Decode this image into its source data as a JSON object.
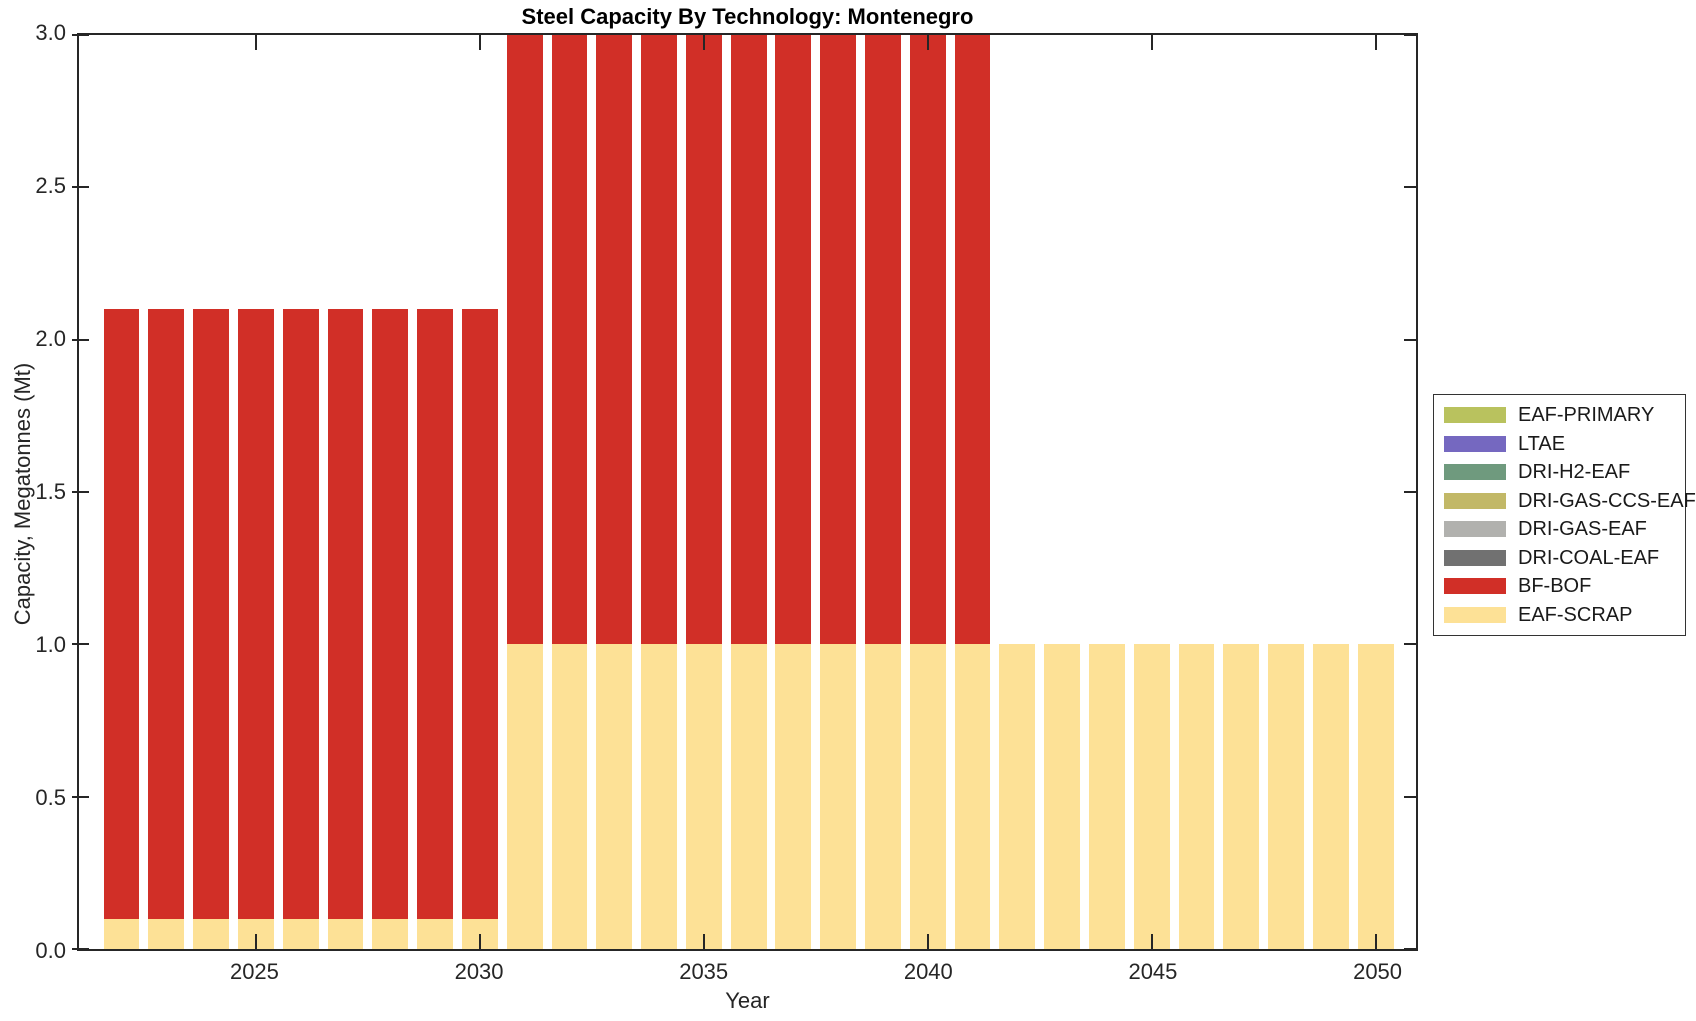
{
  "figure": {
    "title": "Steel Capacity By Technology: Montenegro",
    "background_color": "#ffffff",
    "axis_color": "#262626",
    "text_color": "#262626"
  },
  "chart_data": {
    "type": "bar",
    "stacked": true,
    "title": "Steel Capacity By Technology: Montenegro",
    "xlabel": "Year",
    "ylabel": "Capacity, Megatonnes (Mt)",
    "xlim": [
      2021.05,
      2050.9
    ],
    "ylim": [
      0,
      3
    ],
    "x_ticks": [
      2025,
      2030,
      2035,
      2040,
      2045,
      2050
    ],
    "y_ticks": [
      0.0,
      0.5,
      1.0,
      1.5,
      2.0,
      2.5,
      3.0
    ],
    "y_tick_labels": [
      "0.0",
      "0.5",
      "1.0",
      "1.5",
      "2.0",
      "2.5",
      "3.0"
    ],
    "grid": false,
    "bar_width_years": 0.8,
    "box_on": true,
    "years": [
      2022,
      2023,
      2024,
      2025,
      2026,
      2027,
      2028,
      2029,
      2030,
      2031,
      2032,
      2033,
      2034,
      2035,
      2036,
      2037,
      2038,
      2039,
      2040,
      2041,
      2042,
      2043,
      2044,
      2045,
      2046,
      2047,
      2048,
      2049,
      2050
    ],
    "series": [
      {
        "name": "EAF-SCRAP",
        "color": "#fde196",
        "values": [
          0.1,
          0.1,
          0.1,
          0.1,
          0.1,
          0.1,
          0.1,
          0.1,
          0.1,
          1.0,
          1.0,
          1.0,
          1.0,
          1.0,
          1.0,
          1.0,
          1.0,
          1.0,
          1.0,
          1.0,
          1.0,
          1.0,
          1.0,
          1.0,
          1.0,
          1.0,
          1.0,
          1.0,
          1.0
        ]
      },
      {
        "name": "BF-BOF",
        "color": "#d12f27",
        "values": [
          2.0,
          2.0,
          2.0,
          2.0,
          2.0,
          2.0,
          2.0,
          2.0,
          2.0,
          2.0,
          2.0,
          2.0,
          2.0,
          2.0,
          2.0,
          2.0,
          2.0,
          2.0,
          2.0,
          2.0,
          0,
          0,
          0,
          0,
          0,
          0,
          0,
          0,
          0
        ]
      },
      {
        "name": "DRI-COAL-EAF",
        "color": "#717171",
        "values": [
          0,
          0,
          0,
          0,
          0,
          0,
          0,
          0,
          0,
          0,
          0,
          0,
          0,
          0,
          0,
          0,
          0,
          0,
          0,
          0,
          0,
          0,
          0,
          0,
          0,
          0,
          0,
          0,
          0
        ]
      },
      {
        "name": "DRI-GAS-EAF",
        "color": "#b1b1ae",
        "values": [
          0,
          0,
          0,
          0,
          0,
          0,
          0,
          0,
          0,
          0,
          0,
          0,
          0,
          0,
          0,
          0,
          0,
          0,
          0,
          0,
          0,
          0,
          0,
          0,
          0,
          0,
          0,
          0,
          0
        ]
      },
      {
        "name": "DRI-GAS-CCS-EAF",
        "color": "#c2b867",
        "values": [
          0,
          0,
          0,
          0,
          0,
          0,
          0,
          0,
          0,
          0,
          0,
          0,
          0,
          0,
          0,
          0,
          0,
          0,
          0,
          0,
          0,
          0,
          0,
          0,
          0,
          0,
          0,
          0,
          0
        ]
      },
      {
        "name": "DRI-H2-EAF",
        "color": "#6f9a7e",
        "values": [
          0,
          0,
          0,
          0,
          0,
          0,
          0,
          0,
          0,
          0,
          0,
          0,
          0,
          0,
          0,
          0,
          0,
          0,
          0,
          0,
          0,
          0,
          0,
          0,
          0,
          0,
          0,
          0,
          0
        ]
      },
      {
        "name": "LTAE",
        "color": "#7568c0",
        "values": [
          0,
          0,
          0,
          0,
          0,
          0,
          0,
          0,
          0,
          0,
          0,
          0,
          0,
          0,
          0,
          0,
          0,
          0,
          0,
          0,
          0,
          0,
          0,
          0,
          0,
          0,
          0,
          0,
          0
        ]
      },
      {
        "name": "EAF-PRIMARY",
        "color": "#b9c25e",
        "values": [
          0,
          0,
          0,
          0,
          0,
          0,
          0,
          0,
          0,
          0,
          0,
          0,
          0,
          0,
          0,
          0,
          0,
          0,
          0,
          0,
          0,
          0,
          0,
          0,
          0,
          0,
          0,
          0,
          0
        ]
      }
    ],
    "legend": {
      "position": "outside-right",
      "entries": [
        {
          "label": "EAF-PRIMARY",
          "color": "#b9c25e"
        },
        {
          "label": "LTAE",
          "color": "#7568c0"
        },
        {
          "label": "DRI-H2-EAF",
          "color": "#6f9a7e"
        },
        {
          "label": "DRI-GAS-CCS-EAF",
          "color": "#c2b867"
        },
        {
          "label": "DRI-GAS-EAF",
          "color": "#b1b1ae"
        },
        {
          "label": "DRI-COAL-EAF",
          "color": "#717171"
        },
        {
          "label": "BF-BOF",
          "color": "#d12f27"
        },
        {
          "label": "EAF-SCRAP",
          "color": "#fde196"
        }
      ]
    }
  }
}
